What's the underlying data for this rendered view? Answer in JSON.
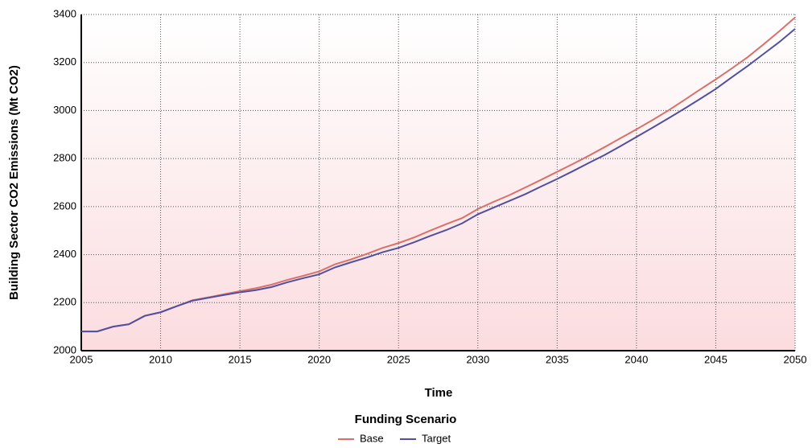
{
  "chart_data": {
    "type": "line",
    "xlabel": "Time",
    "ylabel": "Building Sector CO2 Emissions (Mt CO2)",
    "legend_title": "Funding Scenario",
    "x": [
      2005,
      2006,
      2007,
      2008,
      2009,
      2010,
      2011,
      2012,
      2013,
      2014,
      2015,
      2016,
      2017,
      2018,
      2019,
      2020,
      2021,
      2022,
      2023,
      2024,
      2025,
      2026,
      2027,
      2028,
      2029,
      2030,
      2031,
      2032,
      2033,
      2034,
      2035,
      2036,
      2037,
      2038,
      2039,
      2040,
      2041,
      2042,
      2043,
      2044,
      2045,
      2046,
      2047,
      2048,
      2049,
      2050
    ],
    "series": [
      {
        "name": "Base",
        "color": "#d9706a",
        "values": [
          2080,
          2080,
          2100,
          2110,
          2145,
          2160,
          2185,
          2210,
          2222,
          2235,
          2248,
          2260,
          2275,
          2295,
          2312,
          2330,
          2360,
          2380,
          2403,
          2428,
          2448,
          2472,
          2500,
          2527,
          2552,
          2590,
          2620,
          2648,
          2680,
          2712,
          2745,
          2778,
          2812,
          2848,
          2885,
          2922,
          2960,
          3000,
          3043,
          3087,
          3130,
          3175,
          3222,
          3275,
          3330,
          3388
        ]
      },
      {
        "name": "Target",
        "color": "#5050a0",
        "values": [
          2080,
          2080,
          2100,
          2110,
          2145,
          2160,
          2185,
          2208,
          2220,
          2232,
          2243,
          2252,
          2265,
          2285,
          2302,
          2318,
          2347,
          2368,
          2388,
          2410,
          2428,
          2452,
          2478,
          2502,
          2530,
          2568,
          2596,
          2624,
          2652,
          2684,
          2715,
          2748,
          2782,
          2815,
          2852,
          2890,
          2928,
          2967,
          3007,
          3048,
          3090,
          3138,
          3185,
          3235,
          3285,
          3340
        ]
      }
    ],
    "xlim": [
      2005,
      2050
    ],
    "xticks": [
      2005,
      2010,
      2015,
      2020,
      2025,
      2030,
      2035,
      2040,
      2045,
      2050
    ],
    "ylim": [
      2000,
      3400
    ],
    "yticks": [
      2000,
      2200,
      2400,
      2600,
      2800,
      3000,
      3200,
      3400
    ],
    "grid": true,
    "legend": "bottom"
  }
}
